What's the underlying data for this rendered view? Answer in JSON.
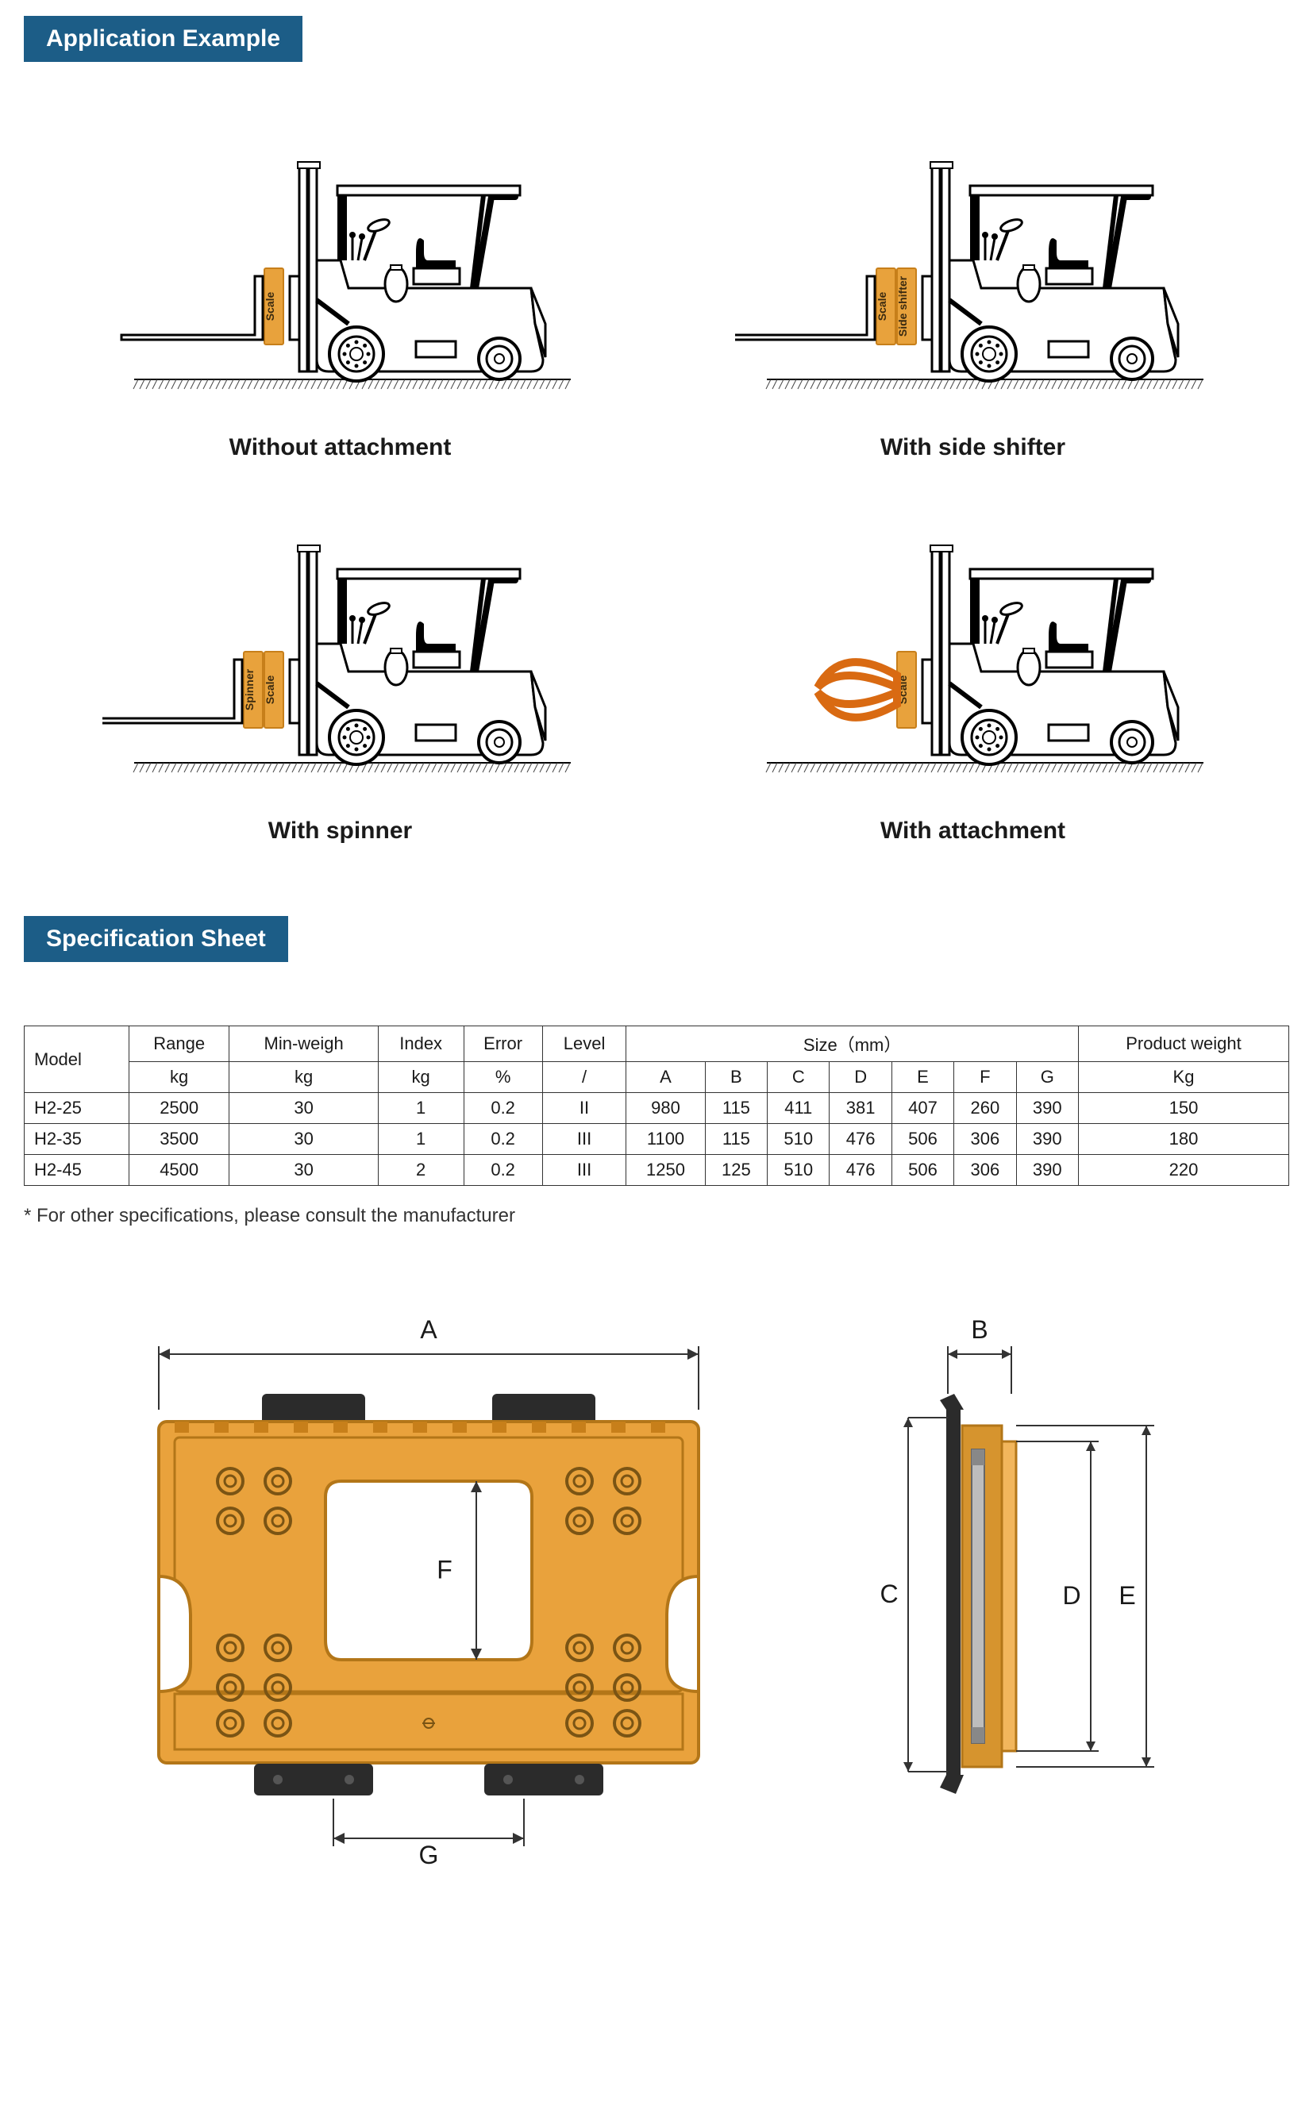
{
  "headers": {
    "application_example": "Application Example",
    "specification_sheet": "Specification Sheet"
  },
  "forklifts": [
    {
      "caption": "Without attachment",
      "boxes": [
        {
          "label": "Scale"
        }
      ],
      "attachment": "none"
    },
    {
      "caption": "With side shifter",
      "boxes": [
        {
          "label": "Scale"
        },
        {
          "label": "Side shifter"
        }
      ],
      "attachment": "none"
    },
    {
      "caption": "With spinner",
      "boxes": [
        {
          "label": "Spinner"
        },
        {
          "label": "Scale"
        }
      ],
      "attachment": "none"
    },
    {
      "caption": "With attachment",
      "boxes": [
        {
          "label": "Scale"
        }
      ],
      "attachment": "clamp"
    }
  ],
  "spec_table": {
    "columns_row1": [
      "Model",
      "Range",
      "Min-weigh",
      "Index",
      "Error",
      "Level",
      "Size（mm）",
      "Product weight"
    ],
    "columns_row2": [
      "kg",
      "kg",
      "kg",
      "%",
      "/",
      "A",
      "B",
      "C",
      "D",
      "E",
      "F",
      "G",
      "Kg"
    ],
    "rows": [
      [
        "H2-25",
        "2500",
        "30",
        "1",
        "0.2",
        "II",
        "980",
        "115",
        "411",
        "381",
        "407",
        "260",
        "390",
        "150"
      ],
      [
        "H2-35",
        "3500",
        "30",
        "1",
        "0.2",
        "III",
        "1100",
        "115",
        "510",
        "476",
        "506",
        "306",
        "390",
        "180"
      ],
      [
        "H2-45",
        "4500",
        "30",
        "2",
        "0.2",
        "III",
        "1250",
        "125",
        "510",
        "476",
        "506",
        "306",
        "390",
        "220"
      ]
    ]
  },
  "footnote": "* For other specifications, please consult the manufacturer",
  "dimension_labels": {
    "A": "A",
    "B": "B",
    "C": "C",
    "D": "D",
    "E": "E",
    "F": "F",
    "G": "G"
  },
  "colors": {
    "header_bg": "#1c5d87",
    "scale_box_fill": "#e8a23c",
    "scale_box_stroke": "#c77f1a",
    "front_plate_fill": "#e9a23c",
    "front_plate_stroke": "#b37618",
    "bolt_stroke": "#7a5414",
    "dark_bracket": "#2b2b2b",
    "side_body": "#d6942e",
    "side_highlight": "#f2b65c",
    "ground_hatch": "#444444"
  }
}
